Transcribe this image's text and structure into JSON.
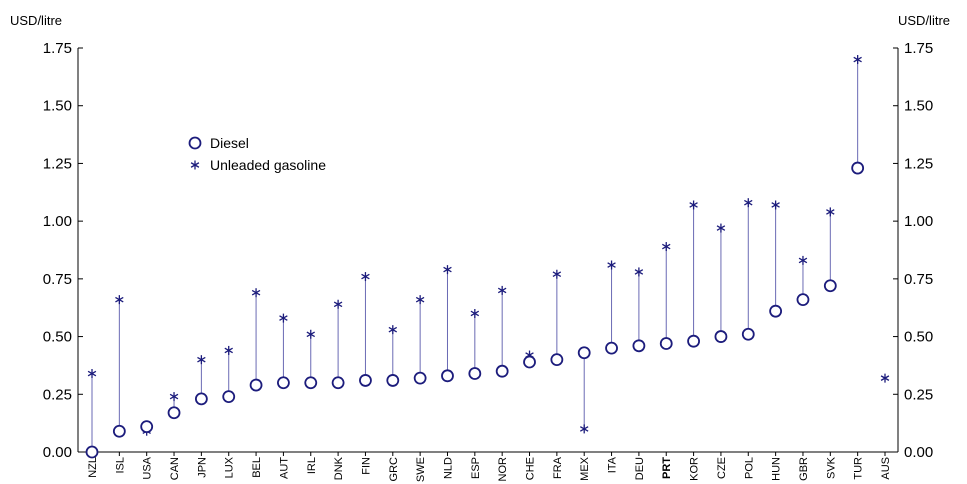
{
  "chart_data": {
    "type": "scatter",
    "y_unit_left": "USD/litre",
    "y_unit_right": "USD/litre",
    "ylim": [
      0,
      1.75
    ],
    "yticks": [
      "0.00",
      "0.25",
      "0.50",
      "0.75",
      "1.00",
      "1.25",
      "1.50",
      "1.75"
    ],
    "grid": false,
    "legend_position": "upper-left",
    "highlight_category": "PRT",
    "categories": [
      "NZL",
      "ISL",
      "USA",
      "CAN",
      "JPN",
      "LUX",
      "BEL",
      "AUT",
      "IRL",
      "DNK",
      "FIN",
      "GRC",
      "SWE",
      "NLD",
      "ESP",
      "NOR",
      "CHE",
      "FRA",
      "MEX",
      "ITA",
      "DEU",
      "PRT",
      "KOR",
      "CZE",
      "POL",
      "HUN",
      "GBR",
      "SVK",
      "TUR",
      "AUS"
    ],
    "series": [
      {
        "name": "Diesel",
        "marker": "circle",
        "values": [
          0.0,
          0.09,
          0.11,
          0.17,
          0.23,
          0.24,
          0.29,
          0.3,
          0.3,
          0.3,
          0.31,
          0.31,
          0.32,
          0.33,
          0.34,
          0.35,
          0.39,
          0.4,
          0.43,
          0.45,
          0.46,
          0.47,
          0.48,
          0.5,
          0.51,
          0.61,
          0.66,
          0.72,
          1.23,
          null
        ]
      },
      {
        "name": "Unleaded gasoline",
        "marker": "asterisk",
        "values": [
          0.34,
          0.66,
          0.09,
          0.24,
          0.4,
          0.44,
          0.69,
          0.58,
          0.51,
          0.64,
          0.76,
          0.53,
          0.66,
          0.79,
          0.6,
          0.7,
          0.42,
          0.77,
          0.1,
          0.81,
          0.78,
          0.89,
          1.07,
          0.97,
          1.08,
          1.07,
          0.83,
          1.04,
          1.7,
          0.32
        ]
      }
    ],
    "colors": {
      "marker": "#1c1c7c",
      "connector": "#6a6ab4",
      "axis": "#000000"
    }
  }
}
